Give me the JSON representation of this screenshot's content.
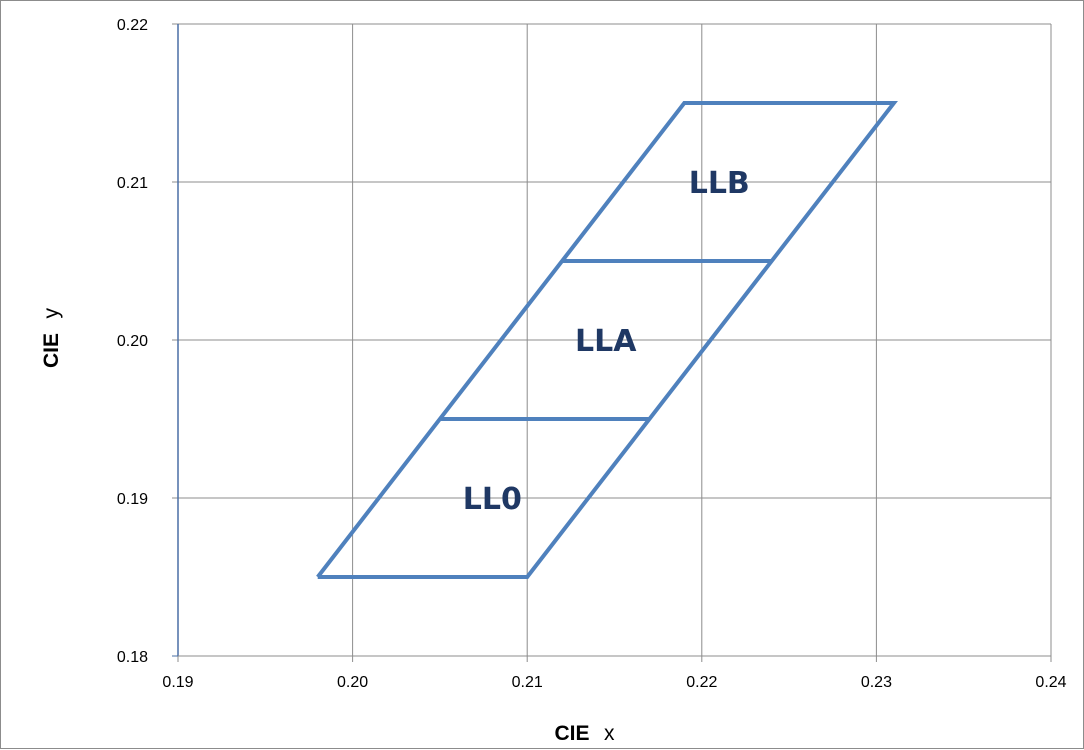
{
  "chart_data": {
    "type": "line",
    "xlabel": {
      "bold": "CIE",
      "regular": "x"
    },
    "ylabel": {
      "bold": "CIE",
      "regular": "y"
    },
    "xlim": [
      0.19,
      0.24
    ],
    "ylim": [
      0.18,
      0.22
    ],
    "x_ticks": [
      "0.19",
      "0.20",
      "0.21",
      "0.22",
      "0.23",
      "0.24"
    ],
    "y_ticks": [
      "0.18",
      "0.19",
      "0.20",
      "0.21",
      "0.22"
    ],
    "x_tick_values": [
      0.19,
      0.2,
      0.21,
      0.22,
      0.23,
      0.24
    ],
    "y_tick_values": [
      0.18,
      0.19,
      0.2,
      0.21,
      0.22
    ],
    "grid": true,
    "line_color": "#4f81bd",
    "label_color": "#1f3864",
    "series": [
      {
        "outline": [
          [
            0.198,
            0.185
          ],
          [
            0.21,
            0.185
          ],
          [
            0.231,
            0.215
          ],
          [
            0.219,
            0.215
          ],
          [
            0.198,
            0.185
          ]
        ],
        "dividers": [
          [
            [
              0.205,
              0.195
            ],
            [
              0.217,
              0.195
            ]
          ],
          [
            [
              0.212,
              0.205
            ],
            [
              0.224,
              0.205
            ]
          ]
        ]
      }
    ],
    "regions": [
      {
        "label": "LL0",
        "x": 0.208,
        "y": 0.19
      },
      {
        "label": "LLA",
        "x": 0.2145,
        "y": 0.2
      },
      {
        "label": "LLB",
        "x": 0.221,
        "y": 0.21
      }
    ]
  }
}
